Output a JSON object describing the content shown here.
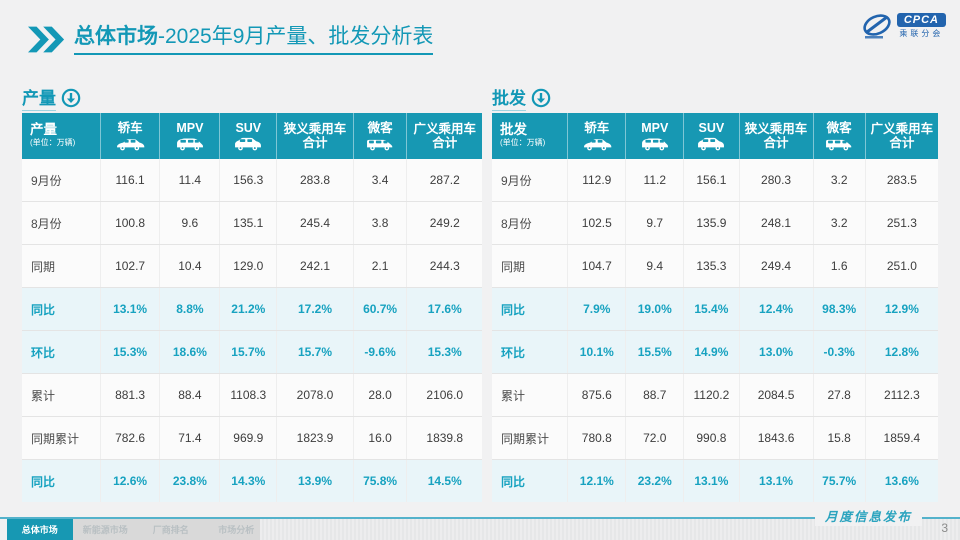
{
  "title": {
    "prefix": "总体市场",
    "rest": "-2025年9月产量、批发分析表"
  },
  "logo": {
    "text": "CPCA",
    "subtext": "乘联分会"
  },
  "colors": {
    "teal_header": "#1798b3",
    "teal_title": "#1398b6",
    "percent_text": "#17a2c0",
    "highlight_row_bg": "#e9f5f9",
    "logo_blue": "#2264ae",
    "slide_bg": "#f1f1f2"
  },
  "tables": [
    {
      "key": "production",
      "section_label": "产量",
      "name": "产量",
      "unit": "(单位：万辆)",
      "columns": [
        {
          "label": "轿车",
          "icon": "sedan"
        },
        {
          "label": "MPV",
          "icon": "mpv"
        },
        {
          "label": "SUV",
          "icon": "suv"
        },
        {
          "label": "狭义乘用车",
          "label2": "合计"
        },
        {
          "label": "微客",
          "icon": "microvan"
        },
        {
          "label": "广义乘用车",
          "label2": "合计"
        }
      ],
      "rows": [
        {
          "label": "9月份",
          "highlight": false,
          "values": [
            "116.1",
            "11.4",
            "156.3",
            "283.8",
            "3.4",
            "287.2"
          ]
        },
        {
          "label": "8月份",
          "highlight": false,
          "values": [
            "100.8",
            "9.6",
            "135.1",
            "245.4",
            "3.8",
            "249.2"
          ]
        },
        {
          "label": "同期",
          "highlight": false,
          "values": [
            "102.7",
            "10.4",
            "129.0",
            "242.1",
            "2.1",
            "244.3"
          ]
        },
        {
          "label": "同比",
          "highlight": true,
          "values": [
            "13.1%",
            "8.8%",
            "21.2%",
            "17.2%",
            "60.7%",
            "17.6%"
          ]
        },
        {
          "label": "环比",
          "highlight": true,
          "values": [
            "15.3%",
            "18.6%",
            "15.7%",
            "15.7%",
            "-9.6%",
            "15.3%"
          ]
        },
        {
          "label": "累计",
          "highlight": false,
          "values": [
            "881.3",
            "88.4",
            "1108.3",
            "2078.0",
            "28.0",
            "2106.0"
          ]
        },
        {
          "label": "同期累计",
          "highlight": false,
          "values": [
            "782.6",
            "71.4",
            "969.9",
            "1823.9",
            "16.0",
            "1839.8"
          ]
        },
        {
          "label": "同比",
          "highlight": true,
          "values": [
            "12.6%",
            "23.8%",
            "14.3%",
            "13.9%",
            "75.8%",
            "14.5%"
          ]
        }
      ]
    },
    {
      "key": "wholesale",
      "section_label": "批发",
      "name": "批发",
      "unit": "(单位：万辆)",
      "columns": [
        {
          "label": "轿车",
          "icon": "sedan"
        },
        {
          "label": "MPV",
          "icon": "mpv"
        },
        {
          "label": "SUV",
          "icon": "suv"
        },
        {
          "label": "狭义乘用车",
          "label2": "合计"
        },
        {
          "label": "微客",
          "icon": "microvan"
        },
        {
          "label": "广义乘用车",
          "label2": "合计"
        }
      ],
      "rows": [
        {
          "label": "9月份",
          "highlight": false,
          "values": [
            "112.9",
            "11.2",
            "156.1",
            "280.3",
            "3.2",
            "283.5"
          ]
        },
        {
          "label": "8月份",
          "highlight": false,
          "values": [
            "102.5",
            "9.7",
            "135.9",
            "248.1",
            "3.2",
            "251.3"
          ]
        },
        {
          "label": "同期",
          "highlight": false,
          "values": [
            "104.7",
            "9.4",
            "135.3",
            "249.4",
            "1.6",
            "251.0"
          ]
        },
        {
          "label": "同比",
          "highlight": true,
          "values": [
            "7.9%",
            "19.0%",
            "15.4%",
            "12.4%",
            "98.3%",
            "12.9%"
          ]
        },
        {
          "label": "环比",
          "highlight": true,
          "values": [
            "10.1%",
            "15.5%",
            "14.9%",
            "13.0%",
            "-0.3%",
            "12.8%"
          ]
        },
        {
          "label": "累计",
          "highlight": false,
          "values": [
            "875.6",
            "88.7",
            "1120.2",
            "2084.5",
            "27.8",
            "2112.3"
          ]
        },
        {
          "label": "同期累计",
          "highlight": false,
          "values": [
            "780.8",
            "72.0",
            "990.8",
            "1843.6",
            "15.8",
            "1859.4"
          ]
        },
        {
          "label": "同比",
          "highlight": true,
          "values": [
            "12.1%",
            "23.2%",
            "13.1%",
            "13.1%",
            "75.7%",
            "13.6%"
          ]
        }
      ]
    }
  ],
  "footer": {
    "tabs": [
      {
        "label": "总体市场",
        "active": true
      },
      {
        "label": "新能源市场",
        "active": false
      },
      {
        "label": "厂商排名",
        "active": false
      },
      {
        "label": "市场分析",
        "active": false
      }
    ],
    "release_label": "月度信息发布",
    "page_number": "3"
  }
}
